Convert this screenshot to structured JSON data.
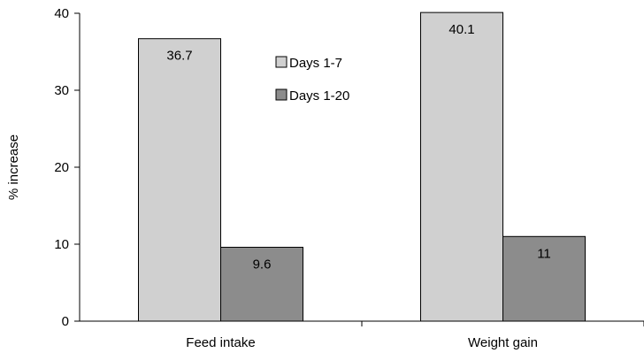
{
  "chart_data": {
    "type": "bar",
    "categories": [
      "Feed intake",
      "Weight gain"
    ],
    "series": [
      {
        "name": "Days 1-7",
        "values": [
          36.7,
          40.1
        ],
        "color": "#d0d0d0"
      },
      {
        "name": "Days 1-20",
        "values": [
          9.6,
          11
        ],
        "color": "#8c8c8c"
      }
    ],
    "data_labels": [
      [
        "36.7",
        "40.1"
      ],
      [
        "9.6",
        "11"
      ]
    ],
    "title": "",
    "xlabel": "",
    "ylabel": "% increase",
    "ylim": [
      0,
      40
    ],
    "yticks": [
      "0",
      "10",
      "20",
      "30",
      "40"
    ],
    "grid": false,
    "legend_position": "inside-top-center"
  }
}
